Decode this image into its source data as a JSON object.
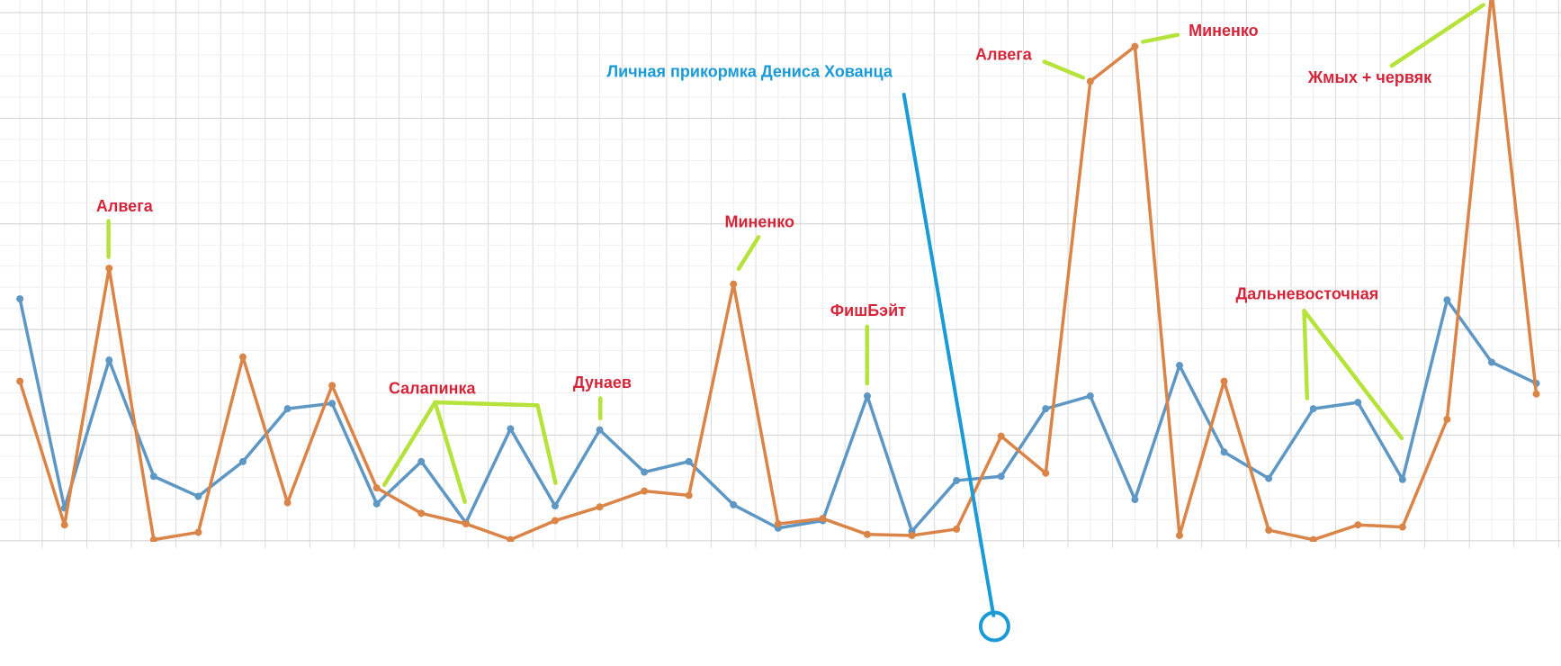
{
  "chart_data": {
    "type": "line",
    "categories": [
      null,
      null,
      null,
      null,
      null,
      null,
      null,
      null,
      null,
      null,
      null,
      null,
      null,
      null,
      null,
      null,
      null,
      null,
      null,
      null,
      null,
      null,
      null,
      null,
      null,
      null,
      null,
      null,
      null,
      null,
      null,
      null,
      null,
      null,
      null
    ],
    "series": [
      {
        "color": "#5e97c4",
        "values": [
          22.9,
          3.1,
          17.1,
          6.1,
          4.2,
          7.5,
          12.5,
          13.0,
          3.5,
          7.5,
          1.7,
          10.6,
          3.3,
          10.5,
          6.5,
          7.5,
          3.4,
          1.2,
          1.9,
          13.7,
          0.9,
          5.7,
          6.1,
          12.5,
          13.7,
          3.9,
          16.6,
          8.4,
          5.9,
          12.5,
          13.1,
          5.8,
          22.8,
          16.9,
          14.9
        ]
      },
      {
        "color": "#da8447",
        "values": [
          15.1,
          1.5,
          25.8,
          0.1,
          0.8,
          17.4,
          3.6,
          14.7,
          5.0,
          2.6,
          1.6,
          0.1,
          1.9,
          3.2,
          4.7,
          4.3,
          24.3,
          1.6,
          2.1,
          0.6,
          0.5,
          1.1,
          9.9,
          6.4,
          43.5,
          46.8,
          0.5,
          15.1,
          1.0,
          0.1,
          1.5,
          1.3,
          11.5,
          52.0,
          13.9
        ]
      }
    ],
    "ylim": [
      0,
      51.2
    ],
    "yticks": [
      0,
      10,
      20,
      30,
      40,
      50
    ],
    "grid": true,
    "annotations": [
      "Алвега",
      "Салапинка",
      "Дунаев",
      "Миненко",
      "ФишБэйт",
      "Личная прикормка Дениса Хованца",
      "Алвега",
      "Миненко",
      "Жмых + червяк",
      "Дальневосточная"
    ]
  }
}
